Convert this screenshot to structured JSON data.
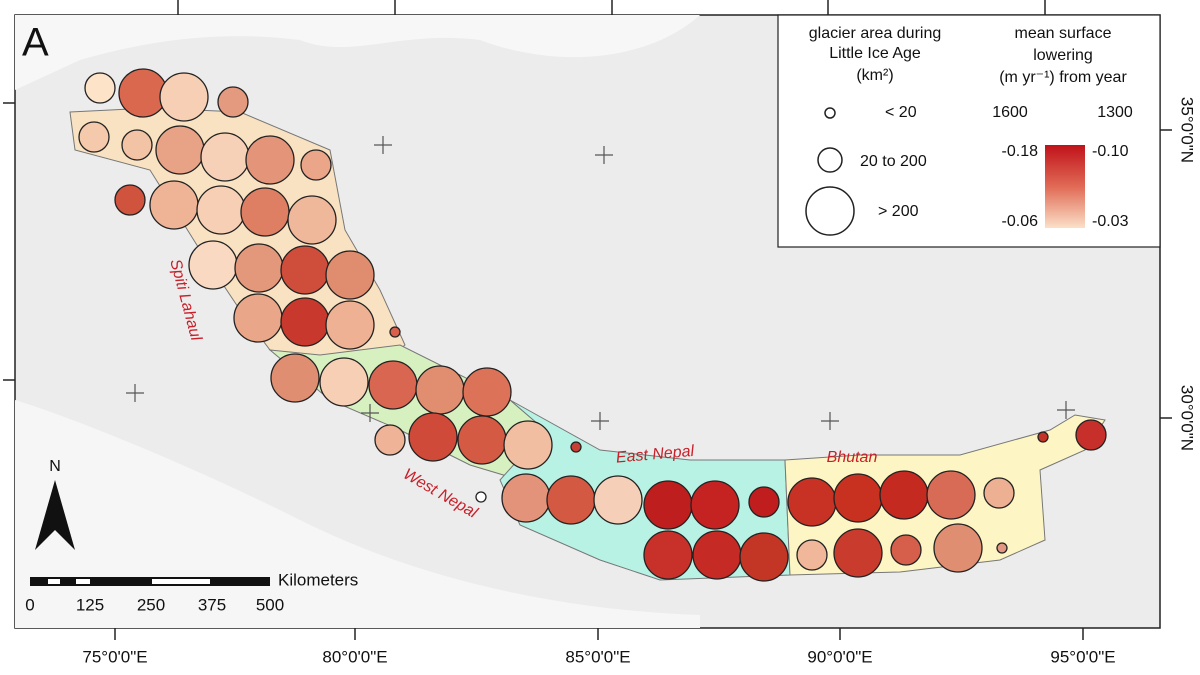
{
  "panel_label": "A",
  "legend": {
    "area_title": [
      "glacier area during",
      "Little Ice Age",
      "(km²)"
    ],
    "area_classes": [
      "< 20",
      "20 to 200",
      "> 200"
    ],
    "lowering_title": [
      "mean surface",
      "lowering",
      "(m yr⁻¹) from year"
    ],
    "years": [
      "1600",
      "1300"
    ],
    "year_1600_range": [
      "-0.18",
      "-0.06"
    ],
    "year_1300_range": [
      "-0.10",
      "-0.03"
    ]
  },
  "regions": [
    "Spiti Lahaul",
    "West Nepal",
    "East Nepal",
    "Bhutan"
  ],
  "longitude_labels": [
    "75°0'0\"E",
    "80°0'0\"E",
    "85°0'0\"E",
    "90°0'0\"E",
    "95°0'0\"E"
  ],
  "latitude_labels": [
    "35°0'0\"N",
    "30°0'0\"N"
  ],
  "scale_bar": {
    "unit": "Kilometers",
    "labels": [
      "0",
      "125",
      "250",
      "375",
      "500"
    ]
  },
  "north": "N"
}
